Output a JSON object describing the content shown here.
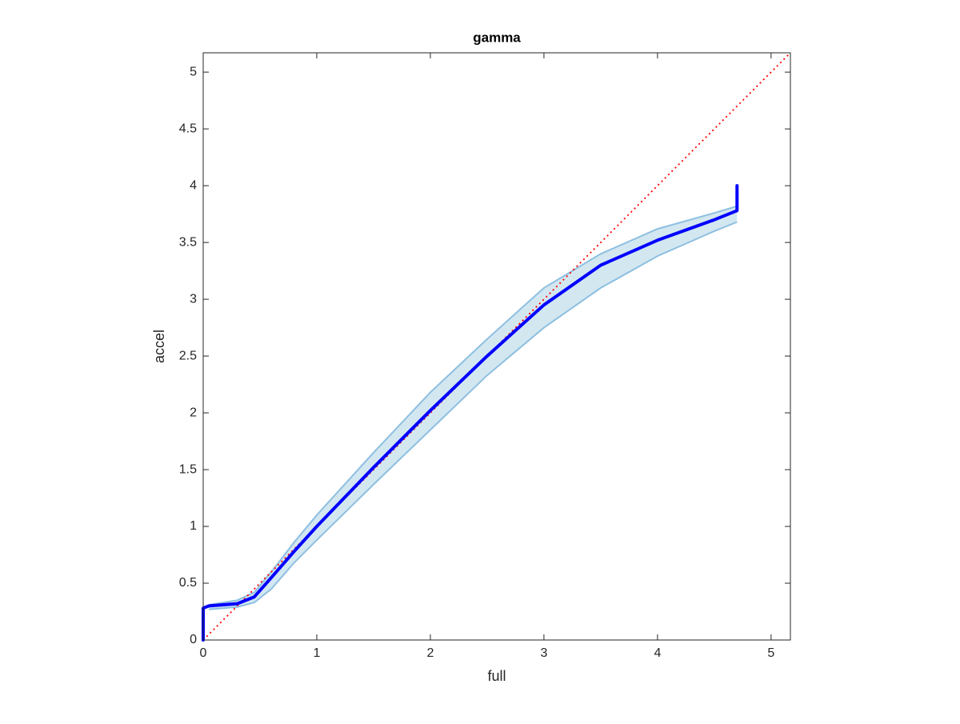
{
  "chart_data": {
    "type": "line",
    "title": "gamma",
    "xlabel": "full",
    "ylabel": "accel",
    "xlim": [
      0,
      5.17
    ],
    "ylim": [
      0,
      5.17
    ],
    "xticks": [
      0,
      1,
      2,
      3,
      4,
      5
    ],
    "yticks": [
      0,
      0.5,
      1,
      1.5,
      2,
      2.5,
      3,
      3.5,
      4,
      4.5,
      5
    ],
    "band": {
      "color": "#9ecae1",
      "edge_color": "#8dbfe0",
      "x": [
        0.05,
        0.3,
        0.45,
        0.6,
        0.8,
        1,
        1.5,
        2,
        2.5,
        3,
        3.5,
        4,
        4.5,
        4.7
      ],
      "upper": [
        0.31,
        0.35,
        0.42,
        0.6,
        0.86,
        1.1,
        1.65,
        2.18,
        2.65,
        3.1,
        3.4,
        3.62,
        3.76,
        3.82
      ],
      "lower": [
        0.27,
        0.29,
        0.33,
        0.45,
        0.68,
        0.88,
        1.37,
        1.85,
        2.33,
        2.75,
        3.1,
        3.38,
        3.6,
        3.68
      ]
    },
    "line": {
      "color": "#0000ff",
      "x": [
        0,
        0,
        0.05,
        0.3,
        0.45,
        0.6,
        0.8,
        1,
        1.5,
        2,
        2.5,
        3,
        3.5,
        4,
        4.5,
        4.7,
        4.7
      ],
      "values": [
        0,
        0.28,
        0.3,
        0.32,
        0.38,
        0.55,
        0.78,
        1.0,
        1.52,
        2.02,
        2.5,
        2.95,
        3.3,
        3.52,
        3.7,
        3.78,
        4.0
      ]
    },
    "reference": {
      "color": "#ff0000",
      "x": [
        0,
        5.17
      ],
      "values": [
        0,
        5.17
      ]
    }
  }
}
